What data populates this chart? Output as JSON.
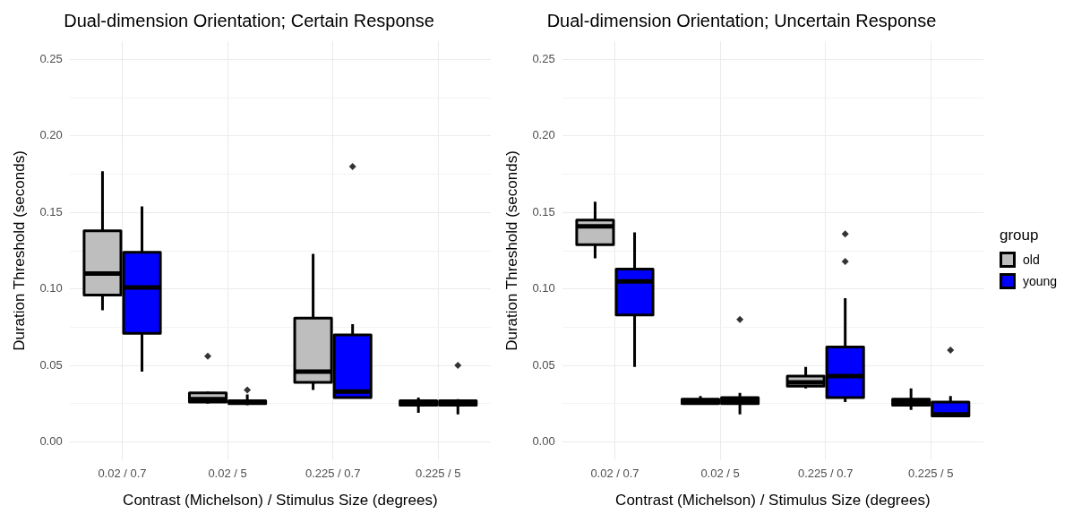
{
  "chart_data": [
    {
      "type": "box",
      "title": "Dual-dimension Orientation; Certain Response",
      "xlabel": "Contrast (Michelson) / Stimulus Size (degrees)",
      "ylabel": "Duration Threshold (seconds)",
      "categories": [
        "0.02 / 0.7",
        "0.02 / 5",
        "0.225 / 0.7",
        "0.225 / 5"
      ],
      "ylim": [
        -0.012,
        0.262
      ],
      "yticks": [
        {
          "value": 0,
          "label": "0.00"
        },
        {
          "value": 0.025,
          "label": null
        },
        {
          "value": 0.05,
          "label": "0.05"
        },
        {
          "value": 0.075,
          "label": null
        },
        {
          "value": 0.1,
          "label": "0.10"
        },
        {
          "value": 0.125,
          "label": null
        },
        {
          "value": 0.15,
          "label": "0.15"
        },
        {
          "value": 0.175,
          "label": null
        },
        {
          "value": 0.2,
          "label": "0.20"
        },
        {
          "value": 0.225,
          "label": null
        },
        {
          "value": 0.25,
          "label": "0.25"
        }
      ],
      "grid": true,
      "legend": false,
      "series": [
        {
          "color": "#bebebe",
          "boxes": [
            {
              "low": 0.086,
              "q1": 0.096,
              "median": 0.11,
              "q3": 0.138,
              "high": 0.177
            },
            {
              "low": 0.025,
              "q1": 0.026,
              "median": 0.028,
              "q3": 0.032,
              "high": 0.033,
              "outliers": [
                0.056
              ]
            },
            {
              "low": 0.034,
              "q1": 0.039,
              "median": 0.046,
              "q3": 0.081,
              "high": 0.123
            },
            {
              "low": 0.019,
              "q1": 0.024,
              "median": 0.025,
              "q3": 0.027,
              "high": 0.029
            }
          ]
        },
        {
          "color": "#0000ff",
          "boxes": [
            {
              "low": 0.046,
              "q1": 0.071,
              "median": 0.101,
              "q3": 0.124,
              "high": 0.154
            },
            {
              "low": 0.024,
              "q1": 0.025,
              "median": 0.026,
              "q3": 0.027,
              "high": 0.031,
              "outliers": [
                0.034
              ]
            },
            {
              "low": 0.029,
              "q1": 0.029,
              "median": 0.033,
              "q3": 0.07,
              "high": 0.077,
              "outliers": [
                0.18
              ]
            },
            {
              "low": 0.018,
              "q1": 0.024,
              "median": 0.025,
              "q3": 0.027,
              "high": 0.028,
              "outliers": [
                0.05
              ]
            }
          ]
        }
      ]
    },
    {
      "type": "box",
      "title": "Dual-dimension Orientation; Uncertain Response",
      "xlabel": "Contrast (Michelson) / Stimulus Size (degrees)",
      "ylabel": "Duration Threshold (seconds)",
      "legend_title": "group",
      "categories": [
        "0.02 / 0.7",
        "0.02 / 5",
        "0.225 / 0.7",
        "0.225 / 5"
      ],
      "ylim": [
        -0.012,
        0.262
      ],
      "yticks": [
        {
          "value": 0,
          "label": "0.00"
        },
        {
          "value": 0.025,
          "label": null
        },
        {
          "value": 0.05,
          "label": "0.05"
        },
        {
          "value": 0.075,
          "label": null
        },
        {
          "value": 0.1,
          "label": "0.10"
        },
        {
          "value": 0.125,
          "label": null
        },
        {
          "value": 0.15,
          "label": "0.15"
        },
        {
          "value": 0.175,
          "label": null
        },
        {
          "value": 0.2,
          "label": "0.20"
        },
        {
          "value": 0.225,
          "label": null
        },
        {
          "value": 0.25,
          "label": "0.25"
        }
      ],
      "grid": true,
      "legend": "right",
      "series": [
        {
          "name": "old",
          "color": "#bebebe",
          "boxes": [
            {
              "low": 0.12,
              "q1": 0.129,
              "median": 0.141,
              "q3": 0.145,
              "high": 0.157
            },
            {
              "low": 0.025,
              "q1": 0.025,
              "median": 0.027,
              "q3": 0.028,
              "high": 0.03
            },
            {
              "low": 0.035,
              "q1": 0.0365,
              "median": 0.039,
              "q3": 0.043,
              "high": 0.049
            },
            {
              "low": 0.021,
              "q1": 0.024,
              "median": 0.026,
              "q3": 0.028,
              "high": 0.035
            }
          ]
        },
        {
          "name": "young",
          "color": "#0000ff",
          "boxes": [
            {
              "low": 0.049,
              "q1": 0.083,
              "median": 0.105,
              "q3": 0.113,
              "high": 0.137
            },
            {
              "low": 0.018,
              "q1": 0.025,
              "median": 0.027,
              "q3": 0.029,
              "high": 0.032,
              "outliers": [
                0.08
              ]
            },
            {
              "low": 0.026,
              "q1": 0.029,
              "median": 0.043,
              "q3": 0.062,
              "high": 0.094,
              "outliers": [
                0.118,
                0.136
              ]
            },
            {
              "low": 0.017,
              "q1": 0.017,
              "median": 0.018,
              "q3": 0.026,
              "high": 0.03,
              "outliers": [
                0.06
              ]
            }
          ]
        }
      ]
    }
  ]
}
